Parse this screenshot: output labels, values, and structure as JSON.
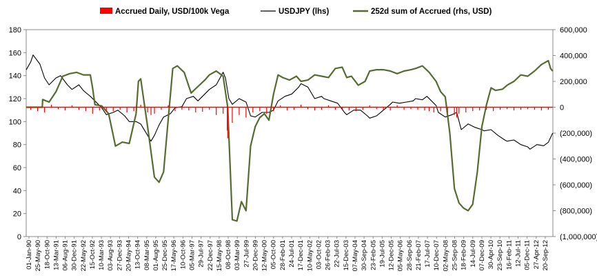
{
  "chart_data": {
    "type": "line",
    "title": "",
    "xlabel": "",
    "ylabel": "",
    "legend": {
      "placement": "top",
      "entries": [
        {
          "key": "accrued",
          "label": "Accrued Daily, USD/100k  Vega",
          "color": "#ff0000",
          "marker": "bar"
        },
        {
          "key": "usdjpy",
          "label": "USDJPY (lhs)",
          "color": "#000000",
          "marker": "line"
        },
        {
          "key": "sum252",
          "label": "252d sum of Accrued (rhs, USD)",
          "color": "#556b2f",
          "marker": "line"
        }
      ]
    },
    "left_axis": {
      "ylim": [
        0,
        180
      ],
      "ticks": [
        "0",
        "20",
        "40",
        "60",
        "80",
        "100",
        "120",
        "140",
        "160",
        "180"
      ],
      "color": "#000000"
    },
    "right_axis": {
      "ylim": [
        -1000000,
        600000
      ],
      "ticks": [
        "600,000",
        "400,000",
        "200,000",
        "0",
        "(200,000)",
        "(400,000)",
        "(600,000)",
        "(800,000)",
        "(1,000,000)"
      ],
      "positive_color": "#000000",
      "negative_color": "#c00000"
    },
    "x_axis": {
      "start": "1990-01-01",
      "end": "2012-12-31",
      "tick_labels": [
        "01-Jan-90",
        "25-May-90",
        "18-Oct-90",
        "13-Mar-91",
        "06-Aug-91",
        "30-Dec-91",
        "22-May-92",
        "15-Oct-92",
        "10-Mar-93",
        "03-Aug-93",
        "27-Dec-93",
        "20-May-94",
        "13-Oct-94",
        "08-Mar-95",
        "01-Aug-95",
        "25-Dec-95",
        "17-May-96",
        "10-Oct-96",
        "05-Mar-97",
        "29-Jul-97",
        "22-Dec-97",
        "15-May-98",
        "08-Oct-98",
        "03-Mar-99",
        "27-Jul-99",
        "20-Dec-99",
        "12-May-00",
        "05-Oct-00",
        "28-Feb-01",
        "24-Jul-01",
        "17-Dec-01",
        "10-May-02",
        "03-Oct-02",
        "26-Feb-03",
        "22-Jul-03",
        "15-Dec-03",
        "07-May-04",
        "30-Sep-04",
        "23-Feb-05",
        "19-Jul-05",
        "12-Dec-05",
        "05-May-06",
        "28-Sep-06",
        "21-Feb-07",
        "17-Jul-07",
        "10-Dec-07",
        "02-May-08",
        "25-Sep-08",
        "18-Feb-09",
        "14-Jul-09",
        "07-Dec-09",
        "30-Apr-10",
        "23-Sep-10",
        "16-Feb-11",
        "12-Jul-11",
        "05-Dec-11",
        "27-Apr-12",
        "20-Sep-12"
      ]
    },
    "series": [
      {
        "name": "USDJPY (lhs)",
        "axis": "left",
        "color": "#000000",
        "x": [
          1990.0,
          1990.2,
          1990.3,
          1990.6,
          1990.8,
          1991.0,
          1991.3,
          1991.5,
          1991.8,
          1992.0,
          1992.3,
          1992.5,
          1992.8,
          1993.0,
          1993.3,
          1993.5,
          1993.8,
          1994.0,
          1994.3,
          1994.5,
          1994.8,
          1995.0,
          1995.3,
          1995.45,
          1995.6,
          1995.8,
          1996.0,
          1996.3,
          1996.5,
          1996.8,
          1997.0,
          1997.3,
          1997.5,
          1997.8,
          1998.0,
          1998.3,
          1998.6,
          1998.7,
          1998.85,
          1999.0,
          1999.3,
          1999.6,
          1999.8,
          2000.0,
          2000.3,
          2000.6,
          2000.8,
          2001.0,
          2001.3,
          2001.6,
          2001.9,
          2002.0,
          2002.3,
          2002.6,
          2002.9,
          2003.0,
          2003.3,
          2003.6,
          2003.9,
          2004.0,
          2004.3,
          2004.6,
          2004.9,
          2005.0,
          2005.3,
          2005.6,
          2005.9,
          2006.0,
          2006.3,
          2006.6,
          2006.9,
          2007.0,
          2007.3,
          2007.5,
          2007.7,
          2007.9,
          2008.0,
          2008.3,
          2008.6,
          2008.8,
          2009.0,
          2009.3,
          2009.6,
          2009.9,
          2010.0,
          2010.3,
          2010.6,
          2010.9,
          2011.0,
          2011.3,
          2011.6,
          2011.9,
          2012.0,
          2012.3,
          2012.6,
          2012.8,
          2012.99
        ],
        "values": [
          145,
          152,
          158,
          150,
          138,
          132,
          138,
          140,
          132,
          128,
          132,
          127,
          122,
          118,
          112,
          106,
          108,
          110,
          105,
          100,
          100,
          98,
          88,
          83,
          88,
          97,
          104,
          107,
          112,
          113,
          120,
          122,
          118,
          124,
          128,
          132,
          143,
          138,
          120,
          115,
          120,
          117,
          105,
          104,
          108,
          108,
          110,
          118,
          122,
          124,
          130,
          133,
          130,
          120,
          122,
          120,
          118,
          116,
          108,
          106,
          110,
          110,
          105,
          103,
          105,
          110,
          115,
          117,
          116,
          117,
          118,
          120,
          119,
          122,
          118,
          114,
          108,
          104,
          106,
          108,
          93,
          98,
          95,
          93,
          92,
          93,
          88,
          84,
          83,
          84,
          80,
          78,
          76,
          80,
          79,
          82,
          90
        ]
      },
      {
        "name": "252d sum of Accrued (rhs, USD)",
        "axis": "right",
        "color": "#556b2f",
        "x": [
          1990.0,
          1990.4,
          1990.7,
          1990.72,
          1991.0,
          1991.3,
          1991.6,
          1991.9,
          1992.2,
          1992.5,
          1992.8,
          1992.9,
          1993.0,
          1993.3,
          1993.6,
          1993.9,
          1994.2,
          1994.5,
          1994.8,
          1994.9,
          1995.0,
          1995.3,
          1995.6,
          1995.8,
          1996.0,
          1996.2,
          1996.4,
          1996.6,
          1996.9,
          1997.2,
          1997.5,
          1997.8,
          1998.0,
          1998.3,
          1998.6,
          1998.8,
          1999.0,
          1999.2,
          1999.4,
          1999.6,
          1999.8,
          2000.0,
          2000.2,
          2000.4,
          2000.6,
          2000.8,
          2001.0,
          2001.2,
          2001.5,
          2001.8,
          2002.0,
          2002.3,
          2002.6,
          2002.9,
          2003.2,
          2003.5,
          2003.8,
          2004.0,
          2004.2,
          2004.5,
          2004.8,
          2005.0,
          2005.3,
          2005.6,
          2005.9,
          2006.2,
          2006.5,
          2006.8,
          2007.0,
          2007.3,
          2007.6,
          2007.9,
          2008.1,
          2008.3,
          2008.5,
          2008.7,
          2008.9,
          2009.1,
          2009.3,
          2009.5,
          2009.7,
          2009.9,
          2010.1,
          2010.3,
          2010.5,
          2010.8,
          2011.0,
          2011.3,
          2011.6,
          2011.9,
          2012.2,
          2012.5,
          2012.8,
          2012.9,
          2012.99
        ],
        "values": [
          0,
          0,
          0,
          60000,
          40000,
          120000,
          240000,
          260000,
          270000,
          250000,
          250000,
          150000,
          20000,
          10000,
          -50000,
          -300000,
          -270000,
          -280000,
          -50000,
          200000,
          220000,
          -150000,
          -540000,
          -580000,
          -500000,
          -100000,
          300000,
          320000,
          270000,
          110000,
          160000,
          210000,
          250000,
          280000,
          240000,
          0,
          -870000,
          -880000,
          -730000,
          -800000,
          -300000,
          -150000,
          -80000,
          -50000,
          -100000,
          100000,
          250000,
          230000,
          210000,
          240000,
          200000,
          210000,
          250000,
          240000,
          230000,
          300000,
          310000,
          230000,
          240000,
          170000,
          200000,
          280000,
          290000,
          290000,
          280000,
          260000,
          280000,
          290000,
          300000,
          320000,
          270000,
          200000,
          120000,
          80000,
          -200000,
          -630000,
          -740000,
          -780000,
          -800000,
          -750000,
          -500000,
          -150000,
          20000,
          150000,
          130000,
          140000,
          170000,
          200000,
          250000,
          240000,
          280000,
          330000,
          360000,
          300000,
          280000
        ]
      },
      {
        "name": "Accrued Daily, USD/100k  Vega",
        "axis": "right",
        "color": "#ff0000",
        "x": [
          1990.2,
          1990.5,
          1990.8,
          1991.1,
          1991.4,
          1991.7,
          1992.0,
          1992.3,
          1992.6,
          1992.9,
          1993.2,
          1993.5,
          1993.8,
          1994.1,
          1994.4,
          1994.7,
          1995.0,
          1995.3,
          1995.45,
          1995.6,
          1995.9,
          1996.2,
          1996.5,
          1996.8,
          1997.1,
          1997.4,
          1997.7,
          1998.0,
          1998.3,
          1998.6,
          1998.78,
          1998.8,
          1999.0,
          1999.3,
          1999.6,
          1999.9,
          2000.2,
          2000.5,
          2000.8,
          2001.1,
          2001.4,
          2001.7,
          2002.0,
          2002.3,
          2002.6,
          2002.9,
          2003.2,
          2003.5,
          2003.8,
          2004.1,
          2004.4,
          2004.7,
          2005.0,
          2005.3,
          2005.6,
          2005.9,
          2006.2,
          2006.5,
          2006.8,
          2007.1,
          2007.4,
          2007.6,
          2007.8,
          2008.1,
          2008.4,
          2008.7,
          2008.8,
          2008.9,
          2009.2,
          2009.5,
          2009.8,
          2010.1,
          2010.4,
          2010.7,
          2011.0,
          2011.3,
          2011.6,
          2011.9,
          2012.2,
          2012.5,
          2012.8
        ],
        "values": [
          -20000,
          -30000,
          -40000,
          20000,
          -15000,
          -25000,
          15000,
          -20000,
          -30000,
          -50000,
          -25000,
          -35000,
          -30000,
          -20000,
          -40000,
          -30000,
          20000,
          -40000,
          -60000,
          -50000,
          -20000,
          15000,
          -30000,
          -20000,
          -25000,
          -40000,
          -35000,
          -20000,
          -60000,
          -50000,
          -180000,
          -240000,
          -120000,
          -60000,
          -80000,
          -40000,
          -30000,
          -50000,
          -30000,
          15000,
          -25000,
          -20000,
          20000,
          -15000,
          -25000,
          -20000,
          15000,
          -20000,
          -15000,
          -25000,
          -30000,
          -20000,
          15000,
          -15000,
          -20000,
          -25000,
          15000,
          -20000,
          -15000,
          -20000,
          -25000,
          -30000,
          -40000,
          -30000,
          -40000,
          -60000,
          -80000,
          -50000,
          -40000,
          -30000,
          -25000,
          -20000,
          -30000,
          -20000,
          -15000,
          -25000,
          -20000,
          -15000,
          -20000,
          -25000,
          -20000
        ]
      }
    ]
  }
}
